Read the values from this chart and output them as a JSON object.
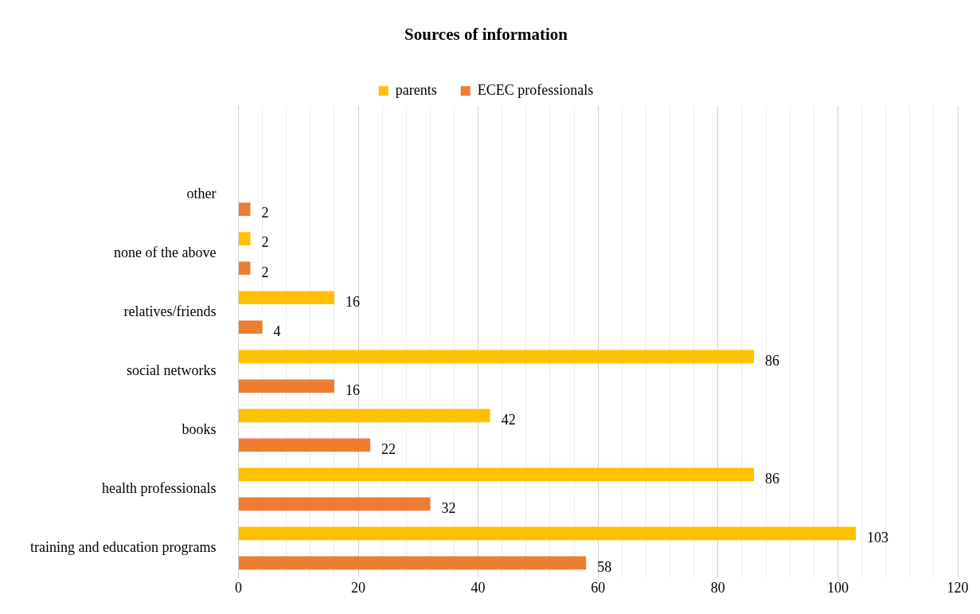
{
  "chart_data": {
    "type": "bar",
    "orientation": "horizontal",
    "title": "Sources of information",
    "categories": [
      null,
      "other",
      "none of the above",
      "relatives/friends",
      "social networks",
      "books",
      "health professionals",
      "training and education programs"
    ],
    "series": [
      {
        "name": "parents",
        "color": "#ffc000",
        "values": [
          null,
          null,
          2,
          16,
          86,
          42,
          86,
          103
        ]
      },
      {
        "name": "ECEC professionals",
        "color": "#ed7d31",
        "values": [
          null,
          2,
          2,
          4,
          16,
          22,
          32,
          58
        ]
      }
    ],
    "xlim": [
      0,
      120
    ],
    "xticks": [
      0,
      {
        "value": 4,
        "label": null
      },
      {
        "value": 8,
        "label": null
      },
      {
        "value": 12,
        "label": null
      },
      {
        "value": 16,
        "label": null
      },
      20,
      {
        "value": 24,
        "label": null
      },
      {
        "value": 28,
        "label": null
      },
      {
        "value": 32,
        "label": null
      },
      {
        "value": 36,
        "label": null
      },
      40,
      {
        "value": 44,
        "label": null
      },
      {
        "value": 48,
        "label": null
      },
      {
        "value": 52,
        "label": null
      },
      {
        "value": 56,
        "label": null
      },
      60,
      {
        "value": 64,
        "label": null
      },
      {
        "value": 68,
        "label": null
      },
      {
        "value": 72,
        "label": null
      },
      {
        "value": 76,
        "label": null
      },
      80,
      {
        "value": 84,
        "label": null
      },
      {
        "value": 88,
        "label": null
      },
      {
        "value": 92,
        "label": null
      },
      {
        "value": 96,
        "label": null
      },
      100,
      {
        "value": 104,
        "label": null
      },
      {
        "value": 108,
        "label": null
      },
      {
        "value": 112,
        "label": null
      },
      {
        "value": 116,
        "label": null
      },
      120
    ],
    "grid": "x",
    "legend": "top",
    "data_labels": true
  }
}
